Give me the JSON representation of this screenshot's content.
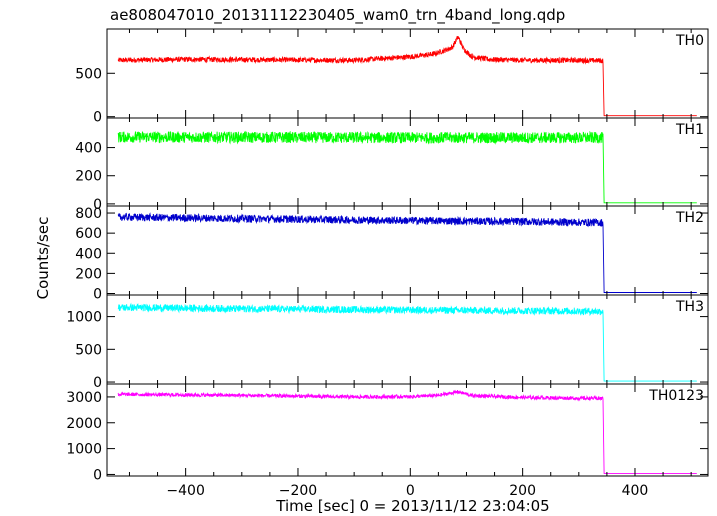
{
  "chart_data": {
    "type": "line",
    "title": "ae808047010_20131112230405_wam0_trn_4band_long.qdp",
    "xlabel": "Time [sec] 0 = 2013/11/12 23:04:05",
    "ylabel": "Counts/sec",
    "xlim": [
      -540,
      530
    ],
    "xticks": [
      -400,
      -200,
      0,
      200,
      400
    ],
    "xtick_labels": [
      "−400",
      "−200",
      "0",
      "200",
      "400"
    ],
    "grid": false,
    "panels": [
      {
        "name": "TH0",
        "color": "#ff0000",
        "ylim": [
          -15,
          1010
        ],
        "yticks": [
          0,
          500
        ],
        "segments": [
          {
            "x": [
              -520,
              -400,
              -250,
              -100,
              0,
              40,
              60,
              75,
              85,
              95,
              110,
              140,
              200,
              300,
              343
            ],
            "y": [
              650,
              660,
              655,
              650,
              690,
              720,
              760,
              800,
              920,
              780,
              690,
              660,
              650,
              650,
              645
            ],
            "noise": 30
          },
          {
            "x": [
              345,
              510
            ],
            "y": [
              12,
              12
            ],
            "noise": 0
          }
        ]
      },
      {
        "name": "TH1",
        "color": "#00ff00",
        "ylim": [
          -15,
          610
        ],
        "yticks": [
          0,
          200,
          400
        ],
        "segments": [
          {
            "x": [
              -520,
              0,
              343
            ],
            "y": [
              475,
              470,
              470
            ],
            "noise": 40
          },
          {
            "x": [
              345,
              510
            ],
            "y": [
              8,
              8
            ],
            "noise": 0
          }
        ]
      },
      {
        "name": "TH2",
        "color": "#0000cc",
        "ylim": [
          -15,
          870
        ],
        "yticks": [
          0,
          200,
          400,
          600,
          800
        ],
        "segments": [
          {
            "x": [
              -520,
              -300,
              0,
              200,
              343
            ],
            "y": [
              760,
              745,
              725,
              715,
              705
            ],
            "noise": 38
          },
          {
            "x": [
              345,
              510
            ],
            "y": [
              10,
              10
            ],
            "noise": 0
          }
        ]
      },
      {
        "name": "TH3",
        "color": "#00ffff",
        "ylim": [
          -30,
          1330
        ],
        "yticks": [
          0,
          500,
          1000
        ],
        "segments": [
          {
            "x": [
              -520,
              -300,
              0,
              200,
              343
            ],
            "y": [
              1140,
              1120,
              1100,
              1090,
              1080
            ],
            "noise": 55
          },
          {
            "x": [
              345,
              510
            ],
            "y": [
              15,
              15
            ],
            "noise": 0
          }
        ]
      },
      {
        "name": "TH0123",
        "color": "#ff00ff",
        "ylim": [
          -60,
          3500
        ],
        "yticks": [
          0,
          1000,
          2000,
          3000
        ],
        "segments": [
          {
            "x": [
              -520,
              -300,
              -100,
              0,
              50,
              85,
              110,
              200,
              343
            ],
            "y": [
              3100,
              3060,
              3000,
              3010,
              3060,
              3200,
              3050,
              2980,
              2940
            ],
            "noise": 70
          },
          {
            "x": [
              345,
              510
            ],
            "y": [
              40,
              40
            ],
            "noise": 0
          }
        ]
      }
    ]
  }
}
